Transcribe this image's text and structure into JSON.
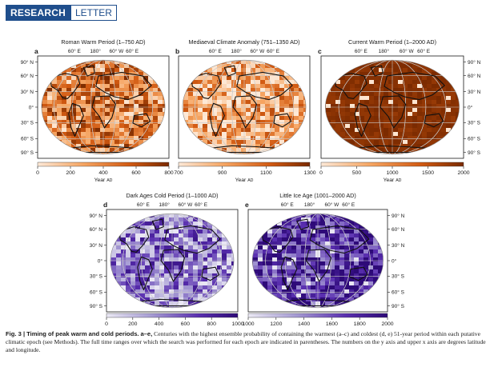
{
  "header": {
    "label_a": "RESEARCH",
    "label_b": "LETTER"
  },
  "colors": {
    "warm_low": "#fde9d7",
    "warm_high": "#7a2a00",
    "cold_low": "#e4e1f1",
    "cold_high": "#2e0a78",
    "header_blue": "#1f4e8c"
  },
  "panels": [
    {
      "letter": "a",
      "title": "Roman Warm Period (1–750 AD)",
      "axis_label": "Year AD",
      "ticks": [
        "0",
        "200",
        "400",
        "600",
        "800"
      ],
      "lon_ticks": [
        "60° E",
        "180°",
        "60° W",
        "60° E"
      ],
      "lat_ticks": [
        "90° N",
        "60° N",
        "30° N",
        "0°",
        "30° S",
        "60° S",
        "90° S"
      ],
      "palette": "warm",
      "mean_level": 0.55
    },
    {
      "letter": "b",
      "title": "Mediaeval Climate Anomaly (751–1350 AD)",
      "axis_label": "Year AD",
      "ticks": [
        "700",
        "900",
        "1100",
        "1300"
      ],
      "lon_ticks": [
        "60° E",
        "180°",
        "60° W",
        "60° E"
      ],
      "palette": "warm",
      "mean_level": 0.35
    },
    {
      "letter": "c",
      "title": "Current Warm Period (1–2000 AD)",
      "axis_label": "Year AD",
      "ticks": [
        "0",
        "500",
        "1000",
        "1500",
        "2000"
      ],
      "lon_ticks": [
        "60° E",
        "180°",
        "60° W",
        "60° E"
      ],
      "lat_ticks": [
        "90° N",
        "60° N",
        "30° N",
        "0°",
        "30° S",
        "60° S",
        "90° S"
      ],
      "palette": "warm",
      "mean_level": 0.97
    },
    {
      "letter": "d",
      "title": "Dark Ages Cold Period (1–1000 AD)",
      "axis_label": "Year AD",
      "ticks": [
        "0",
        "200",
        "400",
        "600",
        "800",
        "1000"
      ],
      "lon_ticks": [
        "60° E",
        "180°",
        "60° W",
        "60° E"
      ],
      "lat_ticks": [
        "90° N",
        "60° N",
        "30° N",
        "0°",
        "30° S",
        "60° S",
        "90° S"
      ],
      "palette": "cold",
      "mean_level": 0.45
    },
    {
      "letter": "e",
      "title": "Little Ice Age (1001–2000 AD)",
      "axis_label": "Year AD",
      "ticks": [
        "1000",
        "1200",
        "1400",
        "1600",
        "1800",
        "2000"
      ],
      "lon_ticks": [
        "60° E",
        "180°",
        "60° W",
        "60° E"
      ],
      "lat_ticks": [
        "90° N",
        "60° N",
        "30° N",
        "0°",
        "30° S",
        "60° S",
        "90° S"
      ],
      "palette": "cold",
      "mean_level": 0.8
    }
  ],
  "caption": {
    "figure": "Fig. 3 | Timing of peak warm and cold periods.",
    "bold_rest": "a–e,",
    "text": "Centuries with the highest ensemble probability of containing the warmest (a–c) and coldest (d, e) 51-year period within each putative climatic epoch (see Methods). The full time ranges over which the search was performed for each epoch are indicated in parentheses. The numbers on the y axis and upper x axis are degrees latitude and longitude."
  }
}
